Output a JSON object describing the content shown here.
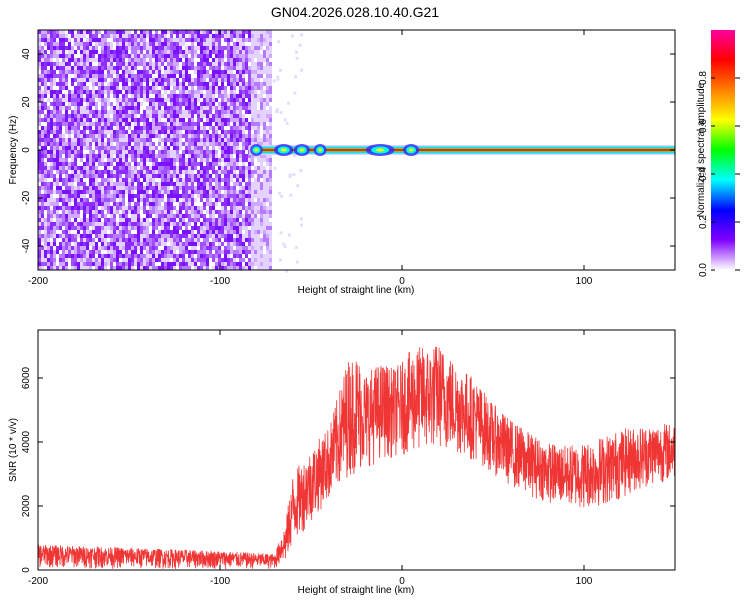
{
  "title": "GN04.2026.028.10.40.G21",
  "colors": {
    "snr_line": "#f03535",
    "background": "#ffffff",
    "axes": "#000000"
  },
  "chart_data": [
    {
      "type": "heatmap",
      "xlabel": "Height of straight line (km)",
      "ylabel": "Frequency (Hz)",
      "xlim": [
        -200,
        150
      ],
      "ylim": [
        -50,
        50
      ],
      "xticks": [
        -200,
        -100,
        0,
        100
      ],
      "yticks": [
        -40,
        -20,
        0,
        20,
        40
      ],
      "grid": false,
      "noise_region_x": [
        -200,
        -72
      ],
      "signal_band_hz": [
        -1,
        1
      ],
      "signal_start_x": -84,
      "colorbar": {
        "label": "Normalized spectral amplitude",
        "range": [
          0,
          1
        ],
        "ticks": [
          0.0,
          0.2,
          0.4,
          0.6,
          0.8
        ],
        "colors": [
          "#ffffff",
          "#8000ff",
          "#0000ff",
          "#00ffff",
          "#00ff00",
          "#ffff00",
          "#ff8000",
          "#ff0000",
          "#ff00a0"
        ]
      }
    },
    {
      "type": "line",
      "xlabel": "Height of straight line (km)",
      "ylabel": "SNR (10 * v/v)",
      "xlim": [
        -200,
        150
      ],
      "ylim": [
        0,
        7500
      ],
      "xticks": [
        -200,
        -100,
        0,
        100
      ],
      "yticks": [
        0,
        2000,
        4000,
        6000
      ],
      "grid": false,
      "envelope": {
        "x": [
          -200,
          -150,
          -100,
          -70,
          -64,
          -60,
          -50,
          -40,
          -35,
          -30,
          -25,
          -20,
          -15,
          -10,
          -5,
          0,
          5,
          10,
          15,
          20,
          25,
          30,
          40,
          50,
          60,
          70,
          80,
          90,
          100,
          110,
          120,
          130,
          140,
          150
        ],
        "min": [
          50,
          30,
          20,
          20,
          200,
          800,
          1500,
          2200,
          2500,
          2900,
          3000,
          3200,
          3300,
          3500,
          3500,
          3600,
          3600,
          3700,
          3700,
          3800,
          3700,
          3600,
          3400,
          3000,
          2600,
          2300,
          2100,
          2000,
          1900,
          2000,
          2200,
          2500,
          2700,
          2800
        ],
        "max": [
          800,
          700,
          600,
          500,
          1500,
          3000,
          3800,
          4500,
          5500,
          6600,
          6800,
          6200,
          6400,
          6500,
          6300,
          6500,
          6900,
          7000,
          7000,
          7100,
          6800,
          6500,
          6000,
          5200,
          4700,
          4300,
          4000,
          3900,
          4000,
          4200,
          4400,
          4500,
          4600,
          4600
        ]
      }
    }
  ]
}
